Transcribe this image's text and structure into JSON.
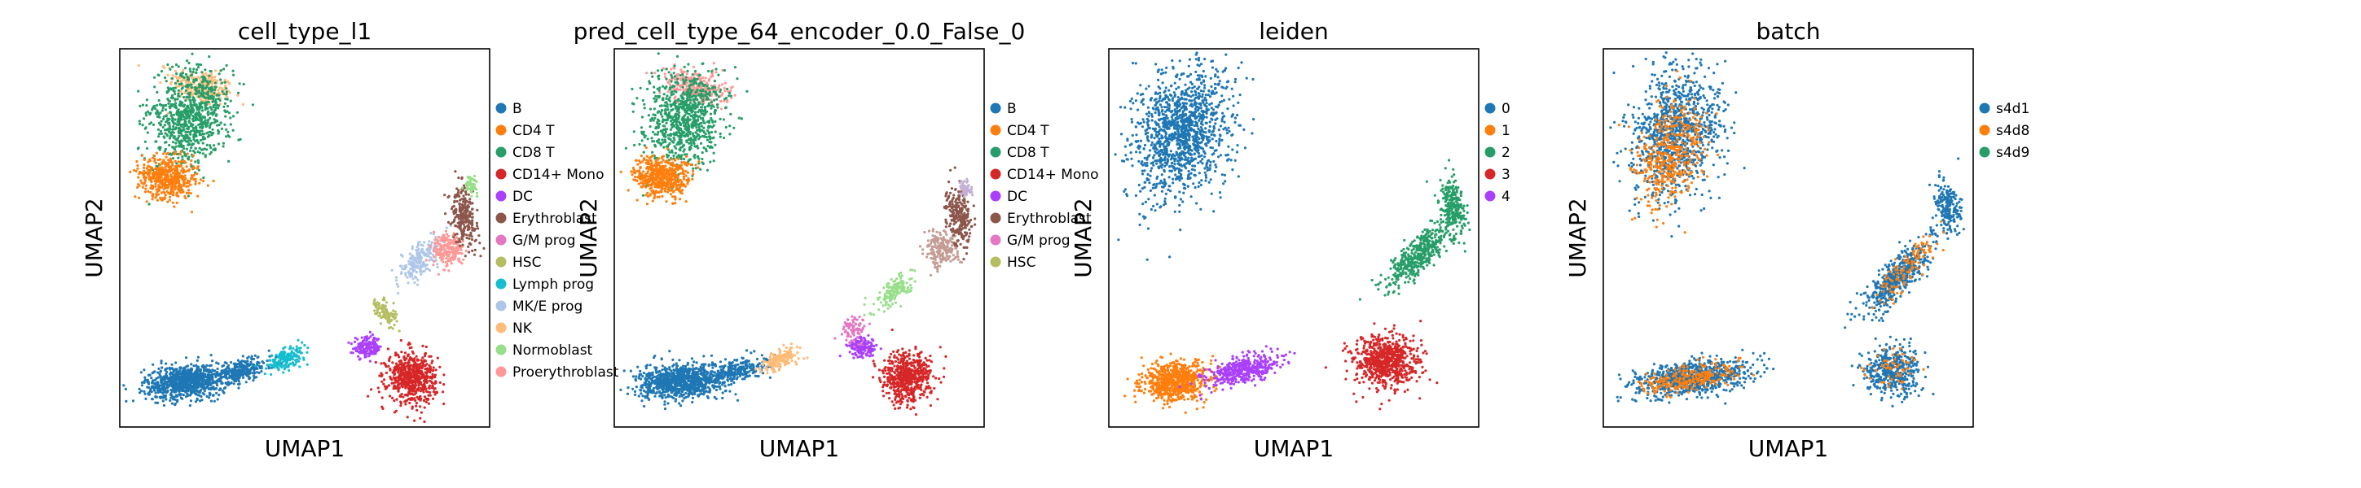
{
  "chart_data": [
    {
      "type": "scatter",
      "title": "cell_type_l1",
      "xlabel": "UMAP1",
      "ylabel": "UMAP2",
      "grid": false,
      "legend_placement": "right",
      "legend": [
        {
          "label": "B",
          "color": "#1f77b4"
        },
        {
          "label": "CD4 T",
          "color": "#ff7f0e"
        },
        {
          "label": "CD8 T",
          "color": "#279e68"
        },
        {
          "label": "CD14+ Mono",
          "color": "#d62728"
        },
        {
          "label": "DC",
          "color": "#aa40fc"
        },
        {
          "label": "Erythroblast",
          "color": "#8c564b"
        },
        {
          "label": "G/M prog",
          "color": "#e377c2"
        },
        {
          "label": "HSC",
          "color": "#b5bd61"
        },
        {
          "label": "Lymph prog",
          "color": "#17becf"
        },
        {
          "label": "MK/E prog",
          "color": "#aec7e8"
        },
        {
          "label": "NK",
          "color": "#ffbb78"
        },
        {
          "label": "Normoblast",
          "color": "#98df8a"
        },
        {
          "label": "Proerythroblast",
          "color": "#ff9896"
        }
      ],
      "clusters": [
        {
          "label": "NK",
          "cx": 0.22,
          "cy": 0.9,
          "rx": 0.08,
          "ry": 0.04,
          "angle": -15,
          "density": 250
        },
        {
          "label": "CD8 T",
          "cx": 0.19,
          "cy": 0.82,
          "rx": 0.09,
          "ry": 0.12,
          "angle": -20,
          "density": 850
        },
        {
          "label": "CD4 T",
          "cx": 0.13,
          "cy": 0.66,
          "rx": 0.07,
          "ry": 0.05,
          "angle": -10,
          "density": 500
        },
        {
          "label": "B",
          "cx": 0.18,
          "cy": 0.12,
          "rx": 0.1,
          "ry": 0.04,
          "angle": 5,
          "density": 900
        },
        {
          "label": "B",
          "cx": 0.33,
          "cy": 0.15,
          "rx": 0.08,
          "ry": 0.025,
          "angle": 15,
          "density": 250
        },
        {
          "label": "Lymph prog",
          "cx": 0.45,
          "cy": 0.18,
          "rx": 0.05,
          "ry": 0.02,
          "angle": 25,
          "density": 180
        },
        {
          "label": "DC",
          "cx": 0.67,
          "cy": 0.21,
          "rx": 0.035,
          "ry": 0.025,
          "angle": 0,
          "density": 150
        },
        {
          "label": "CD14+ Mono",
          "cx": 0.79,
          "cy": 0.13,
          "rx": 0.06,
          "ry": 0.06,
          "angle": 0,
          "density": 600
        },
        {
          "label": "HSC",
          "cx": 0.72,
          "cy": 0.3,
          "rx": 0.02,
          "ry": 0.04,
          "angle": 40,
          "density": 100
        },
        {
          "label": "MK/E prog",
          "cx": 0.81,
          "cy": 0.44,
          "rx": 0.07,
          "ry": 0.03,
          "angle": 45,
          "density": 200
        },
        {
          "label": "Proerythroblast",
          "cx": 0.89,
          "cy": 0.47,
          "rx": 0.04,
          "ry": 0.04,
          "angle": 30,
          "density": 200
        },
        {
          "label": "Erythroblast",
          "cx": 0.93,
          "cy": 0.56,
          "rx": 0.03,
          "ry": 0.07,
          "angle": 10,
          "density": 250
        },
        {
          "label": "Normoblast",
          "cx": 0.95,
          "cy": 0.64,
          "rx": 0.015,
          "ry": 0.02,
          "angle": 0,
          "density": 60
        }
      ]
    },
    {
      "type": "scatter",
      "title": "pred_cell_type_64_encoder_0.0_False_0",
      "xlabel": "UMAP1",
      "ylabel": "UMAP2",
      "grid": false,
      "legend_placement": "right",
      "legend": [
        {
          "label": "B",
          "color": "#1f77b4"
        },
        {
          "label": "CD4 T",
          "color": "#ff7f0e"
        },
        {
          "label": "CD8 T",
          "color": "#279e68"
        },
        {
          "label": "CD14+ Mono",
          "color": "#d62728"
        },
        {
          "label": "DC",
          "color": "#aa40fc"
        },
        {
          "label": "Erythroblast",
          "color": "#8c564b"
        },
        {
          "label": "G/M prog",
          "color": "#e377c2"
        },
        {
          "label": "HSC",
          "color": "#b5bd61"
        }
      ],
      "clusters": [
        {
          "label": "Proerythroblast",
          "cx": 0.22,
          "cy": 0.9,
          "rx": 0.08,
          "ry": 0.04,
          "angle": -15,
          "density": 250,
          "color": "#ff9896"
        },
        {
          "label": "CD8 T",
          "cx": 0.19,
          "cy": 0.82,
          "rx": 0.09,
          "ry": 0.12,
          "angle": -20,
          "density": 850
        },
        {
          "label": "CD4 T",
          "cx": 0.13,
          "cy": 0.66,
          "rx": 0.07,
          "ry": 0.05,
          "angle": -10,
          "density": 500
        },
        {
          "label": "B",
          "cx": 0.18,
          "cy": 0.12,
          "rx": 0.1,
          "ry": 0.04,
          "angle": 5,
          "density": 900
        },
        {
          "label": "B",
          "cx": 0.33,
          "cy": 0.15,
          "rx": 0.08,
          "ry": 0.025,
          "angle": 15,
          "density": 250
        },
        {
          "label": "NK",
          "cx": 0.45,
          "cy": 0.18,
          "rx": 0.05,
          "ry": 0.02,
          "angle": 25,
          "density": 180,
          "color": "#ffbb78"
        },
        {
          "label": "DC",
          "cx": 0.67,
          "cy": 0.21,
          "rx": 0.035,
          "ry": 0.025,
          "angle": 0,
          "density": 150
        },
        {
          "label": "G/M prog",
          "cx": 0.65,
          "cy": 0.26,
          "rx": 0.03,
          "ry": 0.03,
          "angle": 0,
          "density": 80
        },
        {
          "label": "CD14+ Mono",
          "cx": 0.79,
          "cy": 0.13,
          "rx": 0.06,
          "ry": 0.06,
          "angle": 0,
          "density": 600
        },
        {
          "label": "Normoblast",
          "cx": 0.76,
          "cy": 0.36,
          "rx": 0.06,
          "ry": 0.025,
          "angle": 45,
          "density": 150,
          "color": "#98df8a"
        },
        {
          "label": "Erythroblast",
          "cx": 0.89,
          "cy": 0.47,
          "rx": 0.04,
          "ry": 0.04,
          "angle": 30,
          "density": 200,
          "color": "#c49c94"
        },
        {
          "label": "Erythroblast",
          "cx": 0.93,
          "cy": 0.56,
          "rx": 0.03,
          "ry": 0.07,
          "angle": 10,
          "density": 250
        },
        {
          "label": "CD4 T",
          "cx": 0.95,
          "cy": 0.63,
          "rx": 0.015,
          "ry": 0.02,
          "angle": 0,
          "density": 60,
          "color": "#c5b0d5"
        }
      ]
    },
    {
      "type": "scatter",
      "title": "leiden",
      "xlabel": "UMAP1",
      "ylabel": "UMAP2",
      "grid": false,
      "legend_placement": "right",
      "legend": [
        {
          "label": "0",
          "color": "#1f77b4"
        },
        {
          "label": "1",
          "color": "#ff7f0e"
        },
        {
          "label": "2",
          "color": "#279e68"
        },
        {
          "label": "3",
          "color": "#d62728"
        },
        {
          "label": "4",
          "color": "#aa40fc"
        }
      ],
      "clusters": [
        {
          "label": "0",
          "cx": 0.2,
          "cy": 0.78,
          "rx": 0.11,
          "ry": 0.16,
          "angle": -20,
          "density": 1300
        },
        {
          "label": "1",
          "cx": 0.18,
          "cy": 0.12,
          "rx": 0.08,
          "ry": 0.045,
          "angle": 5,
          "density": 700
        },
        {
          "label": "4",
          "cx": 0.36,
          "cy": 0.15,
          "rx": 0.09,
          "ry": 0.03,
          "angle": 15,
          "density": 450
        },
        {
          "label": "2",
          "cx": 0.84,
          "cy": 0.46,
          "rx": 0.1,
          "ry": 0.035,
          "angle": 45,
          "density": 450
        },
        {
          "label": "2",
          "cx": 0.93,
          "cy": 0.58,
          "rx": 0.03,
          "ry": 0.07,
          "angle": 10,
          "density": 250
        },
        {
          "label": "3",
          "cx": 0.75,
          "cy": 0.17,
          "rx": 0.08,
          "ry": 0.065,
          "angle": 0,
          "density": 700
        }
      ]
    },
    {
      "type": "scatter",
      "title": "batch",
      "xlabel": "UMAP1",
      "ylabel": "UMAP2",
      "grid": false,
      "legend_placement": "right",
      "legend": [
        {
          "label": "s4d1",
          "color": "#1f77b4"
        },
        {
          "label": "s4d8",
          "color": "#ff7f0e"
        },
        {
          "label": "s4d9",
          "color": "#279e68"
        }
      ],
      "clusters": [
        {
          "label": "s4d1",
          "cx": 0.2,
          "cy": 0.78,
          "rx": 0.11,
          "ry": 0.16,
          "angle": -20,
          "density": 1000
        },
        {
          "label": "s4d8",
          "cx": 0.18,
          "cy": 0.72,
          "rx": 0.08,
          "ry": 0.12,
          "angle": -20,
          "density": 450
        },
        {
          "label": "s4d1",
          "cx": 0.24,
          "cy": 0.13,
          "rx": 0.14,
          "ry": 0.04,
          "angle": 8,
          "density": 800
        },
        {
          "label": "s4d8",
          "cx": 0.24,
          "cy": 0.13,
          "rx": 0.12,
          "ry": 0.03,
          "angle": 8,
          "density": 250
        },
        {
          "label": "s4d1",
          "cx": 0.8,
          "cy": 0.4,
          "rx": 0.12,
          "ry": 0.035,
          "angle": 48,
          "density": 500
        },
        {
          "label": "s4d8",
          "cx": 0.82,
          "cy": 0.42,
          "rx": 0.1,
          "ry": 0.03,
          "angle": 48,
          "density": 120
        },
        {
          "label": "s4d1",
          "cx": 0.78,
          "cy": 0.15,
          "rx": 0.07,
          "ry": 0.06,
          "angle": 0,
          "density": 450
        },
        {
          "label": "s4d8",
          "cx": 0.78,
          "cy": 0.15,
          "rx": 0.06,
          "ry": 0.05,
          "angle": 0,
          "density": 60
        },
        {
          "label": "s4d1",
          "cx": 0.93,
          "cy": 0.58,
          "rx": 0.03,
          "ry": 0.07,
          "angle": 10,
          "density": 200
        }
      ]
    }
  ]
}
